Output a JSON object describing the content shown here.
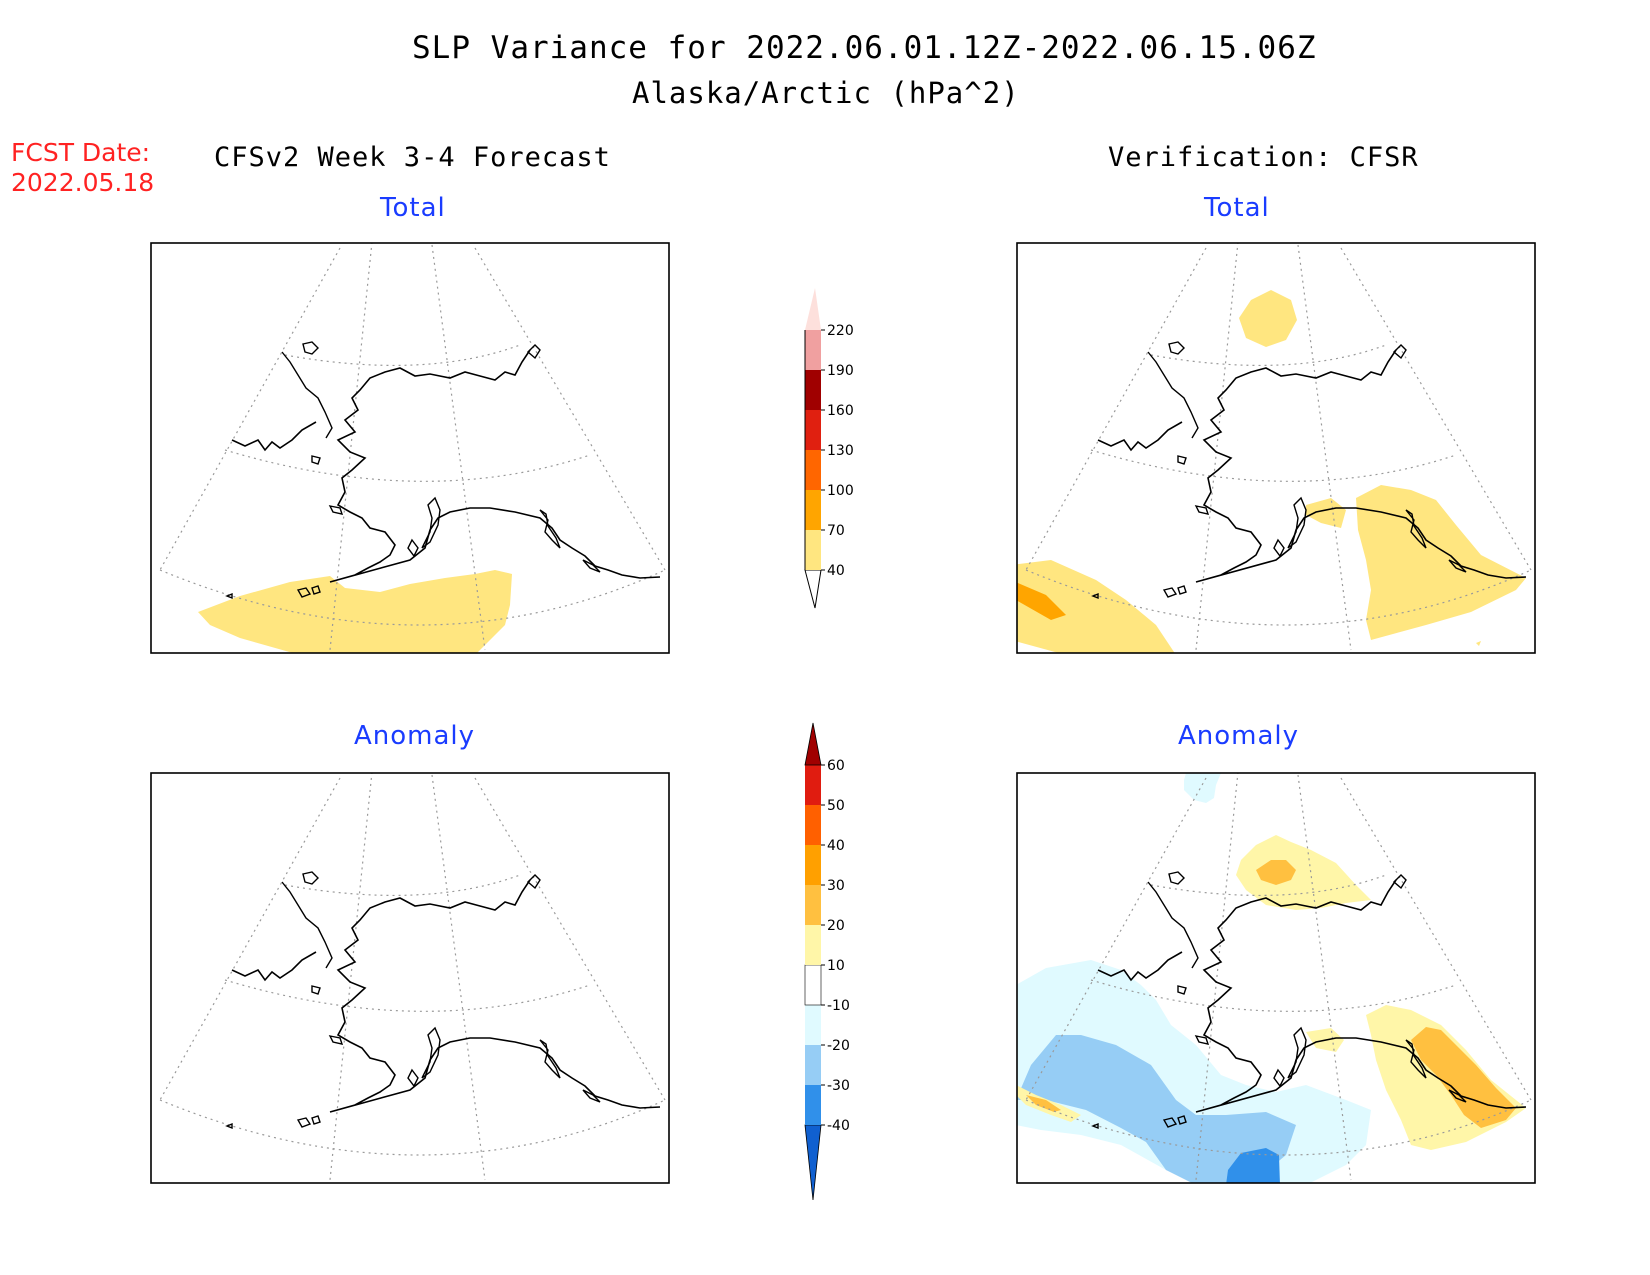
{
  "header": {
    "title": "SLP Variance for 2022.06.01.12Z-2022.06.15.06Z",
    "subtitle": "Alaska/Arctic (hPa^2)",
    "fcst_label": "FCST Date:",
    "fcst_date": "2022.05.18"
  },
  "columns": {
    "left": "CFSv2 Week 3-4 Forecast",
    "right": "Verification: CFSR"
  },
  "panels": {
    "total": "Total",
    "anomaly": "Anomaly"
  },
  "total_colorbar": {
    "labels": [
      "40",
      "70",
      "100",
      "130",
      "160",
      "190",
      "220"
    ],
    "colors": [
      "#ffe680",
      "#ffa500",
      "#ff6600",
      "#e02010",
      "#a00000",
      "#f0a0a0",
      "#fde0dc"
    ]
  },
  "anomaly_colorbar": {
    "labels": [
      "-40",
      "-30",
      "-20",
      "-10",
      "10",
      "20",
      "30",
      "40",
      "50",
      "60"
    ],
    "colors": [
      "#1060d0",
      "#3090ea",
      "#96cdf5",
      "#e0faff",
      "#ffffff",
      "#fff6a8",
      "#ffc040",
      "#ffa000",
      "#ff6000",
      "#e01c10",
      "#a00000"
    ]
  }
}
